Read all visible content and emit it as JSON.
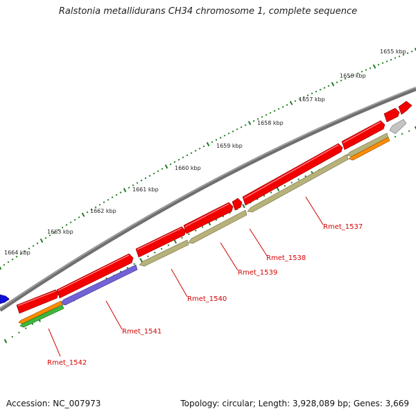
{
  "title": "Ralstonia metallidurans CH34 chromosome 1, complete sequence",
  "accession": "Accession: NC_007973",
  "summary": "Topology: circular; Length: 3,928,089 bp; Genes: 3,669",
  "scale_labels": [
    "1655 kbp",
    "1656 kbp",
    "1657 kbp",
    "1658 kbp",
    "1659 kbp",
    "1660 kbp",
    "1661 kbp",
    "1662 kbp",
    "1663 kbp",
    "1664 kbp"
  ],
  "gene_labels": [
    "Rmet_1537",
    "Rmet_1538",
    "Rmet_1539",
    "Rmet_1540",
    "Rmet_1541",
    "Rmet_1542"
  ],
  "colors": {
    "backbone": "#7a7a7a",
    "tick": "#1e7a1e",
    "label": "#d40000",
    "red_feature": "#f20000",
    "olive_feature": "#b7b27a",
    "purple_feature": "#7262d6",
    "orange_feature": "#ff8c00",
    "green_feature": "#3cb83c",
    "gray_feature": "#c4c4c4",
    "blue_feature": "#1010e0"
  }
}
